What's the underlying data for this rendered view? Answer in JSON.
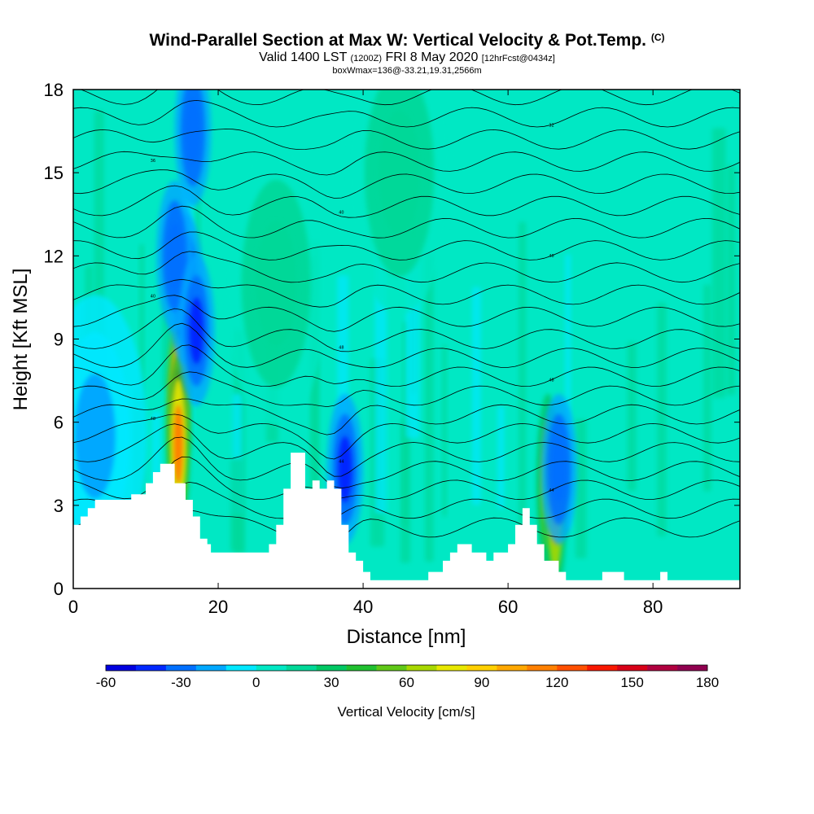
{
  "title": "Wind-Parallel Section at Max W: Vertical Velocity & Pot.Temp.",
  "title_mark": "(C)",
  "subtitle_valid": "Valid 1400 LST",
  "subtitle_z": "(1200Z)",
  "subtitle_date": "FRI 8 May 2020",
  "subtitle_fcst": "[12hrFcst@0434z]",
  "info_line": "boxWmax=136@-33.21,19.31,2566m",
  "chart_data": {
    "type": "heatmap",
    "xlabel": "Distance [nm]",
    "ylabel": "Height [Kft MSL]",
    "xlim": [
      0,
      92
    ],
    "ylim": [
      0,
      18
    ],
    "x_ticks": [
      0,
      20,
      40,
      60,
      80
    ],
    "y_ticks": [
      0,
      3,
      6,
      9,
      12,
      15,
      18
    ],
    "background_color": "#00e8c4",
    "terrain": [
      [
        0,
        2.3
      ],
      [
        1,
        2.3
      ],
      [
        1,
        2.6
      ],
      [
        2,
        2.6
      ],
      [
        2,
        2.9
      ],
      [
        3,
        2.9
      ],
      [
        3,
        3.2
      ],
      [
        8,
        3.2
      ],
      [
        8,
        3.4
      ],
      [
        10,
        3.4
      ],
      [
        10,
        3.8
      ],
      [
        11,
        3.8
      ],
      [
        11,
        4.2
      ],
      [
        12,
        4.2
      ],
      [
        12,
        4.5
      ],
      [
        14,
        4.5
      ],
      [
        14,
        3.8
      ],
      [
        15.5,
        3.8
      ],
      [
        15.5,
        3.2
      ],
      [
        16.5,
        3.2
      ],
      [
        16.5,
        2.6
      ],
      [
        17.5,
        2.6
      ],
      [
        17.5,
        1.8
      ],
      [
        18.5,
        1.8
      ],
      [
        18.5,
        1.6
      ],
      [
        19,
        1.6
      ],
      [
        19,
        1.3
      ],
      [
        27,
        1.3
      ],
      [
        27,
        1.6
      ],
      [
        28,
        1.6
      ],
      [
        28,
        2.3
      ],
      [
        29,
        2.3
      ],
      [
        29,
        3.6
      ],
      [
        30,
        3.6
      ],
      [
        30,
        4.9
      ],
      [
        32,
        4.9
      ],
      [
        32,
        3.6
      ],
      [
        33,
        3.6
      ],
      [
        33,
        3.9
      ],
      [
        34,
        3.9
      ],
      [
        34,
        3.6
      ],
      [
        35,
        3.6
      ],
      [
        35,
        3.9
      ],
      [
        36,
        3.9
      ],
      [
        36,
        3.6
      ],
      [
        37,
        3.6
      ],
      [
        37,
        2.3
      ],
      [
        38,
        2.3
      ],
      [
        38,
        1.3
      ],
      [
        39,
        1.3
      ],
      [
        39,
        1.0
      ],
      [
        40,
        1.0
      ],
      [
        40,
        0.6
      ],
      [
        41,
        0.6
      ],
      [
        41,
        0.3
      ],
      [
        49,
        0.3
      ],
      [
        49,
        0.6
      ],
      [
        51,
        0.6
      ],
      [
        51,
        1.0
      ],
      [
        52,
        1.0
      ],
      [
        52,
        1.3
      ],
      [
        53,
        1.3
      ],
      [
        53,
        1.6
      ],
      [
        55,
        1.6
      ],
      [
        55,
        1.3
      ],
      [
        57,
        1.3
      ],
      [
        57,
        1.0
      ],
      [
        58,
        1.0
      ],
      [
        58,
        1.3
      ],
      [
        60,
        1.3
      ],
      [
        60,
        1.6
      ],
      [
        61,
        1.6
      ],
      [
        61,
        2.3
      ],
      [
        62,
        2.3
      ],
      [
        62,
        2.9
      ],
      [
        63,
        2.9
      ],
      [
        63,
        2.3
      ],
      [
        64,
        2.3
      ],
      [
        64,
        1.6
      ],
      [
        65,
        1.6
      ],
      [
        65,
        1.0
      ],
      [
        67,
        1.0
      ],
      [
        67,
        0.6
      ],
      [
        68,
        0.6
      ],
      [
        68,
        0.3
      ],
      [
        73,
        0.3
      ],
      [
        73,
        0.6
      ],
      [
        76,
        0.6
      ],
      [
        76,
        0.3
      ],
      [
        81,
        0.3
      ],
      [
        81,
        0.6
      ],
      [
        82,
        0.6
      ],
      [
        82,
        0.3
      ],
      [
        92,
        0.3
      ]
    ],
    "vertical_velocity_features": [
      {
        "x": 14.5,
        "z": 6.5,
        "value": 150
      },
      {
        "x": 14.5,
        "z": 5.2,
        "value": 110
      },
      {
        "x": 15.5,
        "z": 10.8,
        "value": -45
      },
      {
        "x": 14,
        "z": 12,
        "value": -35
      },
      {
        "x": 17,
        "z": 9.3,
        "value": -40
      },
      {
        "x": 16.5,
        "z": 16.5,
        "value": -35
      },
      {
        "x": 65.5,
        "z": 3.8,
        "value": 75
      },
      {
        "x": 66.5,
        "z": 3.0,
        "value": 100
      },
      {
        "x": 67,
        "z": 4.3,
        "value": -35
      },
      {
        "x": 37.5,
        "z": 4.3,
        "value": -40
      },
      {
        "x": 28,
        "z": 11,
        "value": 20
      },
      {
        "x": 45,
        "z": 15,
        "value": 20
      },
      {
        "x": 3,
        "z": 5.5,
        "value": -15
      }
    ],
    "theta_contours": {
      "levels": 24,
      "label_values": [
        "44",
        "44",
        "44",
        "48",
        "48",
        "48",
        "40",
        "40",
        "40",
        "36",
        "32",
        "32",
        "32",
        "28",
        "28",
        "28",
        "24",
        "24",
        "24",
        "20",
        "20",
        "20",
        "16",
        "16",
        "12",
        "8",
        "36",
        "36"
      ]
    },
    "colorbar": {
      "title": "Vertical Velocity [cm/s]",
      "tick_labels": [
        "-60",
        "-30",
        "0",
        "30",
        "60",
        "90",
        "120",
        "150",
        "180"
      ],
      "colors": [
        "#0000e0",
        "#0028ff",
        "#0070ff",
        "#00a8ff",
        "#00e8ff",
        "#00e8c4",
        "#00d898",
        "#00c864",
        "#20c030",
        "#60c818",
        "#a8d800",
        "#e8e800",
        "#ffd000",
        "#ffa800",
        "#ff8000",
        "#ff5000",
        "#f81800",
        "#d80018",
        "#b00040",
        "#900050"
      ]
    }
  }
}
